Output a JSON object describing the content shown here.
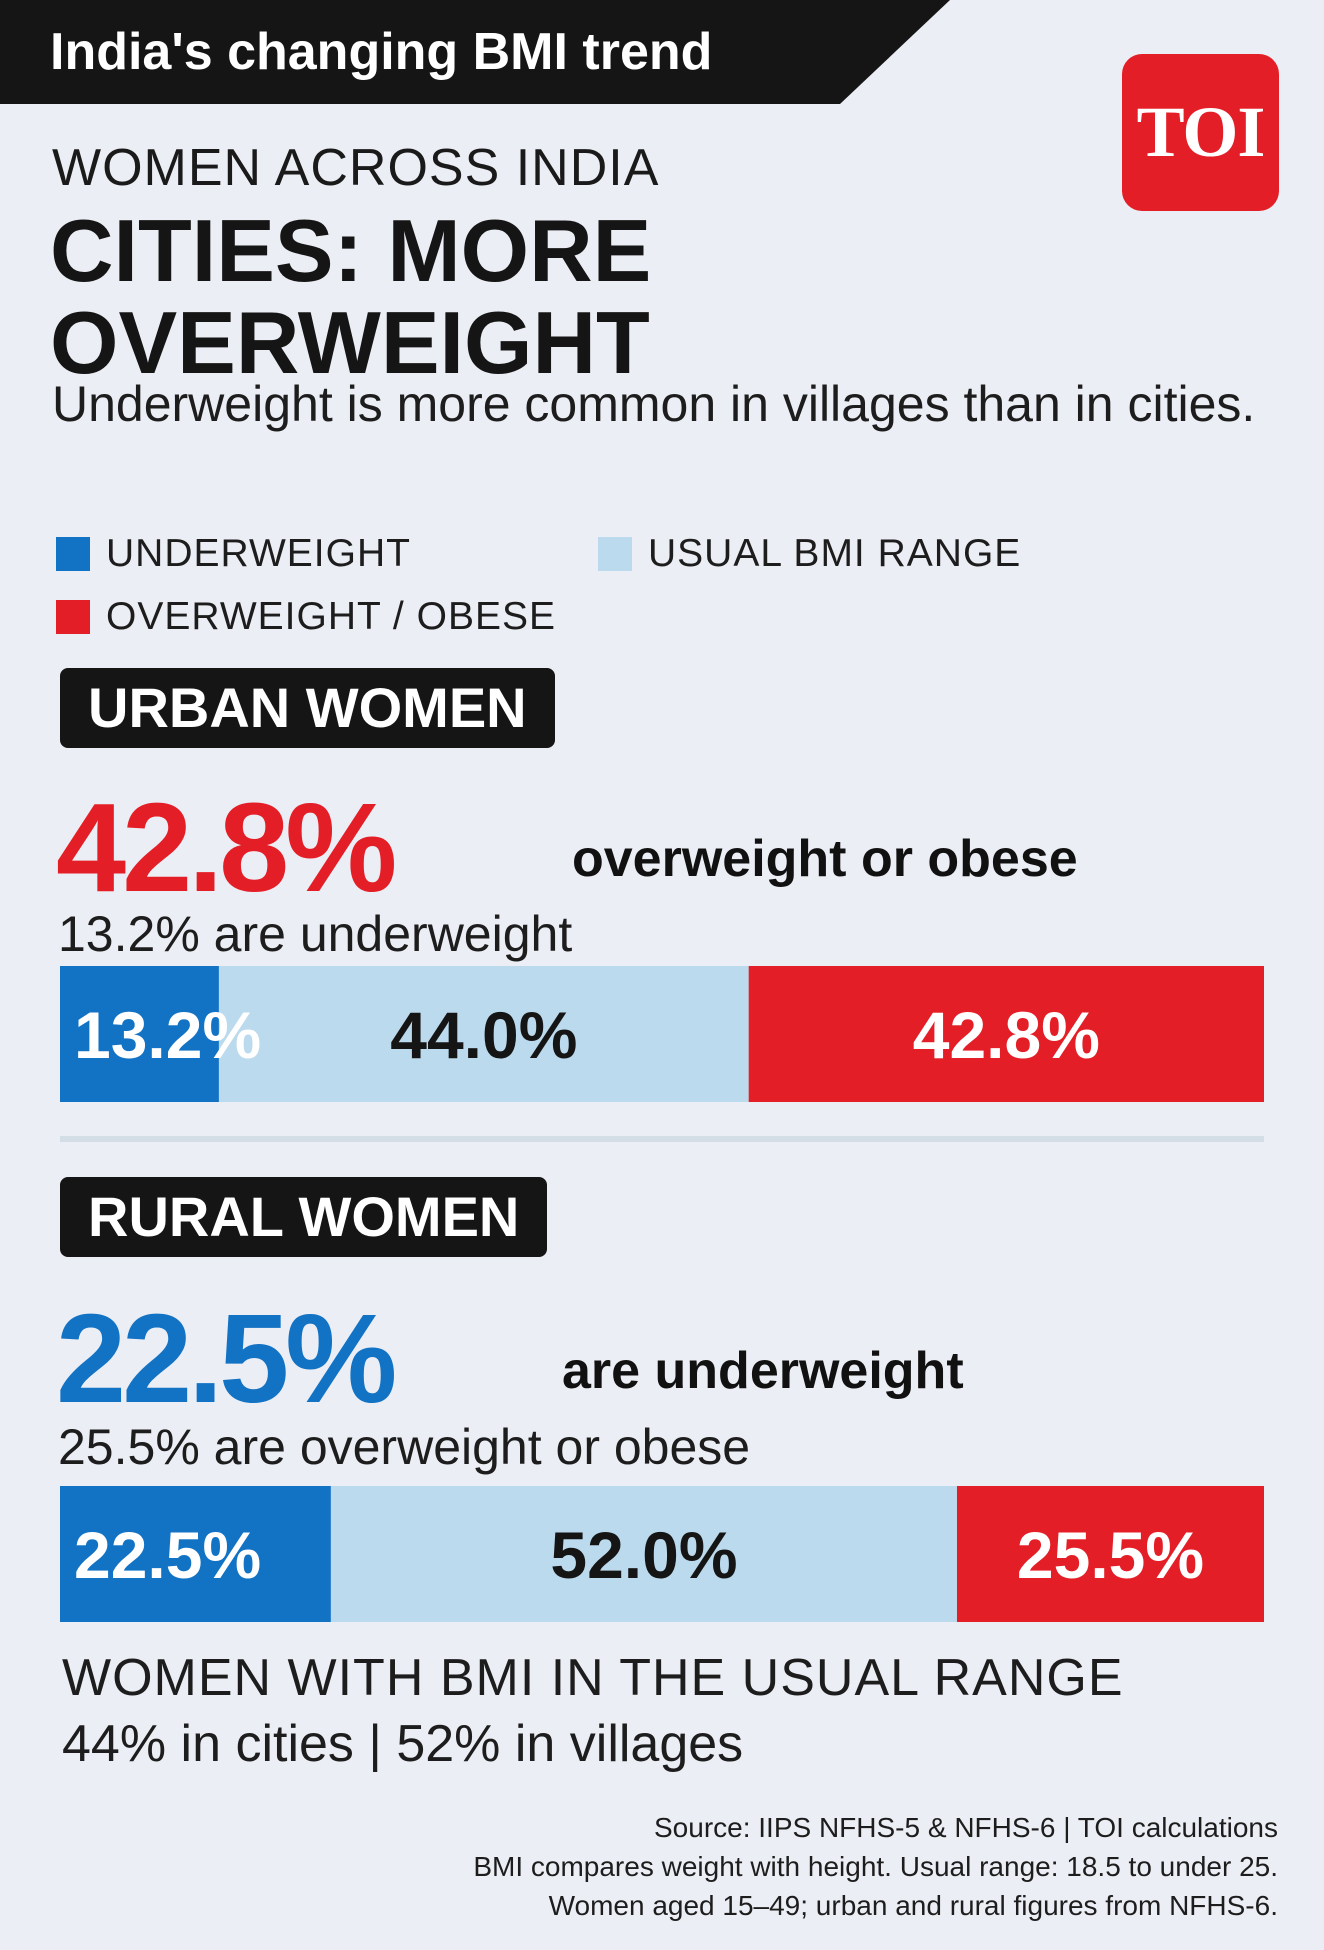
{
  "banner": {
    "title": "India's changing BMI trend"
  },
  "logo": {
    "text": "TOI"
  },
  "header": {
    "kicker": "WOMEN ACROSS INDIA",
    "headline": "CITIES: MORE OVERWEIGHT",
    "subhead": "Underweight is more common in villages than in cities."
  },
  "legend": {
    "underweight": "UNDERWEIGHT",
    "usual": "USUAL BMI RANGE",
    "overweight": "OVERWEIGHT / OBESE"
  },
  "urban": {
    "tag": "URBAN WOMEN",
    "big_value": "42.8%",
    "big_note": "overweight or obese",
    "small_note": "13.2% are underweight"
  },
  "rural": {
    "tag": "RURAL WOMEN",
    "big_value": "22.5%",
    "big_note": "are underweight",
    "small_note": "25.5% are overweight or obese"
  },
  "footer": {
    "usual_title": "WOMEN WITH BMI IN THE USUAL RANGE",
    "usual_detail": "44% in cities | 52% in villages",
    "source_lines": [
      "Source: IIPS NFHS-5 & NFHS-6 | TOI calculations",
      "BMI compares weight with height. Usual range: 18.5 to under 25.",
      "Women aged 15–49; urban and rural figures from NFHS-6."
    ]
  },
  "colors": {
    "underweight": "#1272c4",
    "usual": "#bcdaed",
    "overweight": "#e41e26",
    "dark": "#151515"
  },
  "chart_data": [
    {
      "type": "bar",
      "stacked": true,
      "orientation": "horizontal",
      "categories": [
        "URBAN WOMEN"
      ],
      "series": [
        {
          "name": "UNDERWEIGHT",
          "values": [
            13.2
          ],
          "label": "13.2%"
        },
        {
          "name": "USUAL BMI RANGE",
          "values": [
            44.0
          ],
          "label": "44.0%"
        },
        {
          "name": "OVERWEIGHT / OBESE",
          "values": [
            42.8
          ],
          "label": "42.8%"
        }
      ]
    },
    {
      "type": "bar",
      "stacked": true,
      "orientation": "horizontal",
      "categories": [
        "RURAL WOMEN"
      ],
      "series": [
        {
          "name": "UNDERWEIGHT",
          "values": [
            22.5
          ],
          "label": "22.5%"
        },
        {
          "name": "USUAL BMI RANGE",
          "values": [
            52.0
          ],
          "label": "52.0%"
        },
        {
          "name": "OVERWEIGHT / OBESE",
          "values": [
            25.5
          ],
          "label": "25.5%"
        }
      ]
    }
  ]
}
